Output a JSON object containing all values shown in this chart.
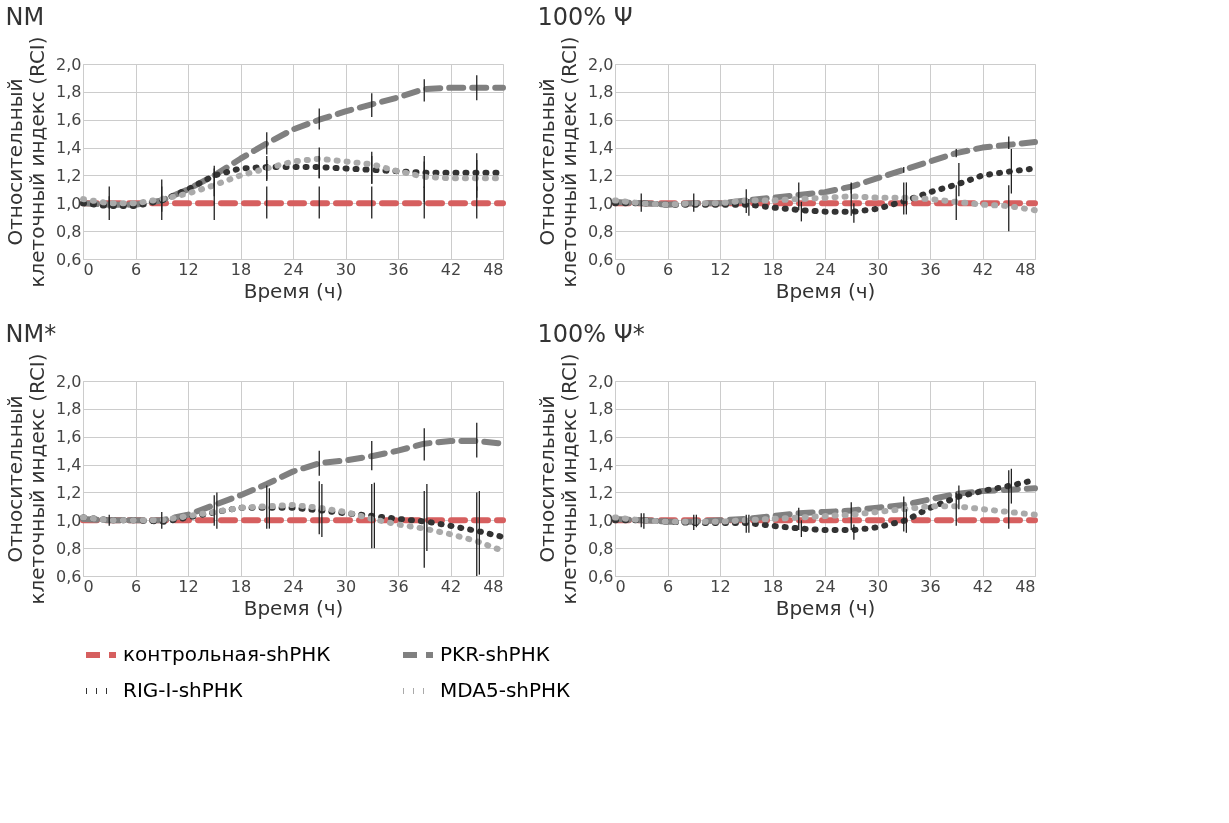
{
  "chart_data": [
    {
      "type": "line",
      "title": "NM",
      "xlabel": "Время (ч)",
      "ylabel": "Относительный\nклеточный индекс (RCI)",
      "x": [
        0,
        3,
        6,
        9,
        12,
        15,
        18,
        21,
        24,
        27,
        30,
        33,
        36,
        39,
        42,
        45,
        48
      ],
      "xlim": [
        0,
        48
      ],
      "xticks": [
        0,
        6,
        12,
        18,
        24,
        30,
        36,
        42,
        48
      ],
      "ylim": [
        0.6,
        2.0
      ],
      "yticks": [
        {
          "value": 0.6,
          "label": "0,6"
        },
        {
          "value": 0.8,
          "label": "0,8"
        },
        {
          "value": 1.0,
          "label": "1,0"
        },
        {
          "value": 1.2,
          "label": "1,2"
        },
        {
          "value": 1.4,
          "label": "1,4"
        },
        {
          "value": 1.6,
          "label": "1,6"
        },
        {
          "value": 1.8,
          "label": "1,8"
        },
        {
          "value": 2.0,
          "label": "2,0"
        }
      ],
      "grid": true,
      "legend": "bottom",
      "marker": "none",
      "series": [
        {
          "name": "контрольная-shРНК",
          "color": "#d65f5f",
          "line_style": "dashed",
          "values": [
            1.0,
            1.0,
            1.0,
            1.0,
            1.0,
            1.0,
            1.0,
            1.0,
            1.0,
            1.0,
            1.0,
            1.0,
            1.0,
            1.0,
            1.0,
            1.0,
            1.0
          ],
          "errors": [
            null,
            [
              0.88,
              1.12
            ],
            null,
            [
              0.88,
              1.12
            ],
            null,
            [
              0.88,
              1.15
            ],
            null,
            [
              0.89,
              1.12
            ],
            null,
            [
              0.89,
              1.12
            ],
            null,
            [
              0.89,
              1.12
            ],
            null,
            [
              0.89,
              1.12
            ],
            null,
            [
              0.89,
              1.12
            ],
            null
          ]
        },
        {
          "name": "PKR-shРНК",
          "color": "#808080",
          "line_style": "dashed",
          "values": [
            1.0,
            0.99,
            0.99,
            1.02,
            1.1,
            1.2,
            1.32,
            1.43,
            1.53,
            1.6,
            1.66,
            1.71,
            1.76,
            1.82,
            1.83,
            1.83,
            1.83
          ],
          "errors": [
            null,
            null,
            null,
            null,
            null,
            null,
            null,
            [
              1.35,
              1.51
            ],
            null,
            [
              1.53,
              1.68
            ],
            null,
            [
              1.62,
              1.79
            ],
            null,
            [
              1.73,
              1.89
            ],
            null,
            [
              1.74,
              1.92
            ],
            null
          ]
        },
        {
          "name": "RIG-I-shРНК",
          "color": "#333333",
          "line_style": "dotted",
          "values": [
            1.0,
            0.98,
            0.98,
            1.02,
            1.1,
            1.2,
            1.25,
            1.26,
            1.26,
            1.26,
            1.25,
            1.24,
            1.23,
            1.22,
            1.22,
            1.22,
            1.22
          ],
          "errors": [
            null,
            [
              0.96,
              1.05
            ],
            null,
            [
              0.94,
              1.17
            ],
            null,
            [
              1.12,
              1.27
            ],
            null,
            [
              1.17,
              1.34
            ],
            null,
            [
              1.18,
              1.34
            ],
            null,
            [
              1.14,
              1.34
            ],
            null,
            [
              1.11,
              1.34
            ],
            null,
            [
              1.09,
              1.36
            ],
            null
          ]
        },
        {
          "name": "MDA5-shРНК",
          "color": "#aaaaaa",
          "line_style": "dotted",
          "values": [
            1.03,
            1.0,
            1.0,
            1.03,
            1.07,
            1.13,
            1.2,
            1.25,
            1.3,
            1.32,
            1.3,
            1.28,
            1.23,
            1.19,
            1.18,
            1.18,
            1.18
          ],
          "errors": [
            null,
            null,
            null,
            null,
            null,
            [
              1.05,
              1.25
            ],
            null,
            [
              1.16,
              1.31
            ],
            null,
            [
              1.18,
              1.4
            ],
            null,
            [
              1.14,
              1.37
            ],
            null,
            [
              1.01,
              1.3
            ],
            null,
            [
              1.04,
              1.31
            ],
            null
          ]
        }
      ]
    },
    {
      "type": "line",
      "title": "100% Ψ",
      "xlabel": "Время (ч)",
      "ylabel": "Относительный\nклеточный индекс (RCI)",
      "x": [
        0,
        3,
        6,
        9,
        12,
        15,
        18,
        21,
        24,
        27,
        30,
        33,
        36,
        39,
        42,
        45,
        48
      ],
      "xlim": [
        0,
        48
      ],
      "xticks": [
        0,
        6,
        12,
        18,
        24,
        30,
        36,
        42,
        48
      ],
      "ylim": [
        0.6,
        2.0
      ],
      "yticks": [
        {
          "value": 0.6,
          "label": "0,6"
        },
        {
          "value": 0.8,
          "label": "0,8"
        },
        {
          "value": 1.0,
          "label": "1,0"
        },
        {
          "value": 1.2,
          "label": "1,2"
        },
        {
          "value": 1.4,
          "label": "1,4"
        },
        {
          "value": 1.6,
          "label": "1,6"
        },
        {
          "value": 1.8,
          "label": "1,8"
        },
        {
          "value": 2.0,
          "label": "2,0"
        }
      ],
      "grid": true,
      "legend": "bottom",
      "marker": "none",
      "series": [
        {
          "name": "контрольная-shРНК",
          "color": "#d65f5f",
          "line_style": "dashed",
          "values": [
            1.0,
            1.0,
            1.0,
            1.0,
            1.0,
            1.0,
            1.0,
            1.0,
            1.0,
            1.0,
            1.0,
            1.0,
            1.0,
            1.0,
            1.0,
            1.0,
            1.0
          ],
          "errors": [
            null,
            [
              0.94,
              1.07
            ],
            null,
            [
              0.94,
              1.07
            ],
            null,
            [
              0.93,
              1.1
            ],
            null,
            [
              0.95,
              1.15
            ],
            null,
            [
              0.91,
              1.14
            ],
            null,
            [
              0.92,
              1.15
            ],
            null,
            [
              0.88,
              1.13
            ],
            null,
            [
              0.8,
              1.13
            ],
            null
          ]
        },
        {
          "name": "PKR-shРНК",
          "color": "#808080",
          "line_style": "dashed",
          "values": [
            1.01,
            1.0,
            0.99,
            1.0,
            1.0,
            1.02,
            1.04,
            1.06,
            1.08,
            1.12,
            1.18,
            1.24,
            1.3,
            1.36,
            1.4,
            1.42,
            1.44
          ],
          "errors": [
            null,
            null,
            null,
            null,
            null,
            null,
            null,
            null,
            null,
            [
              1.07,
              1.15
            ],
            null,
            [
              1.22,
              1.26
            ],
            null,
            [
              1.33,
              1.39
            ],
            null,
            [
              1.39,
              1.48
            ],
            null
          ]
        },
        {
          "name": "RIG-I-shРНК",
          "color": "#333333",
          "line_style": "dotted",
          "x": [
            0,
            3.3,
            6,
            9.3,
            12,
            15.3,
            18,
            21.3,
            24,
            27.3,
            30,
            33.3,
            36,
            39.3,
            42,
            45.3,
            48
          ],
          "values": [
            1.0,
            1.0,
            0.99,
            0.99,
            0.99,
            0.99,
            0.97,
            0.95,
            0.94,
            0.94,
            0.96,
            1.02,
            1.08,
            1.14,
            1.2,
            1.23,
            1.25
          ],
          "errors": [
            null,
            null,
            null,
            null,
            null,
            [
              0.91,
              1.03
            ],
            null,
            [
              0.87,
              1.01
            ],
            null,
            [
              0.86,
              1.0
            ],
            null,
            [
              0.92,
              1.15
            ],
            null,
            [
              1.05,
              1.29
            ],
            null,
            [
              1.07,
              1.39
            ],
            null
          ]
        },
        {
          "name": "MDA5-shРНК",
          "color": "#aaaaaa",
          "line_style": "dotted",
          "values": [
            1.02,
            1.0,
            0.99,
            1.0,
            1.0,
            1.02,
            1.02,
            1.03,
            1.04,
            1.05,
            1.04,
            1.04,
            1.03,
            1.01,
            0.99,
            0.98,
            0.95
          ]
        }
      ]
    },
    {
      "type": "line",
      "title": "NM*",
      "xlabel": "Время (ч)",
      "ylabel": "Относительный\nклеточный индекс (RCI)",
      "x": [
        0,
        3,
        6,
        9,
        12,
        15,
        18,
        21,
        24,
        27,
        30,
        33,
        36,
        39,
        42,
        45,
        48
      ],
      "xlim": [
        0,
        48
      ],
      "xticks": [
        0,
        6,
        12,
        18,
        24,
        30,
        36,
        42,
        48
      ],
      "ylim": [
        0.6,
        2.0
      ],
      "yticks": [
        {
          "value": 0.6,
          "label": "0,6"
        },
        {
          "value": 0.8,
          "label": "0,8"
        },
        {
          "value": 1.0,
          "label": "1,0"
        },
        {
          "value": 1.2,
          "label": "1,2"
        },
        {
          "value": 1.4,
          "label": "1,4"
        },
        {
          "value": 1.6,
          "label": "1,6"
        },
        {
          "value": 1.8,
          "label": "1,8"
        },
        {
          "value": 2.0,
          "label": "2,0"
        }
      ],
      "grid": true,
      "legend": "bottom",
      "marker": "none",
      "series": [
        {
          "name": "контрольная-shРНК",
          "color": "#d65f5f",
          "line_style": "dashed",
          "values": [
            1.0,
            1.0,
            1.0,
            1.0,
            1.0,
            1.0,
            1.0,
            1.0,
            1.0,
            1.0,
            1.0,
            1.0,
            1.0,
            1.0,
            1.0,
            1.0,
            1.0
          ],
          "errors": [
            null,
            [
              0.96,
              1.04
            ],
            null,
            [
              0.94,
              1.06
            ],
            null,
            [
              0.96,
              1.18
            ],
            null,
            [
              0.94,
              1.25
            ],
            null,
            [
              0.9,
              1.28
            ],
            null,
            [
              0.8,
              1.26
            ],
            null,
            [
              0.66,
              1.21
            ],
            null,
            [
              0.6,
              1.2
            ],
            null
          ]
        },
        {
          "name": "PKR-shРНК",
          "color": "#808080",
          "line_style": "dashed",
          "values": [
            1.01,
            1.0,
            1.0,
            1.0,
            1.04,
            1.11,
            1.18,
            1.26,
            1.35,
            1.41,
            1.43,
            1.46,
            1.5,
            1.55,
            1.57,
            1.57,
            1.55
          ],
          "errors": [
            null,
            null,
            null,
            null,
            null,
            null,
            null,
            null,
            null,
            [
              1.32,
              1.5
            ],
            null,
            [
              1.36,
              1.57
            ],
            null,
            [
              1.43,
              1.66
            ],
            null,
            [
              1.45,
              1.7
            ],
            null
          ]
        },
        {
          "name": "RIG-I-shРНК",
          "color": "#333333",
          "line_style": "dotted",
          "x": [
            0,
            3.3,
            6,
            9.3,
            12,
            15.3,
            18,
            21.3,
            24,
            27.3,
            30,
            33.3,
            36,
            39.3,
            42,
            45.3,
            48
          ],
          "values": [
            1.02,
            1.0,
            1.0,
            0.99,
            1.02,
            1.06,
            1.09,
            1.09,
            1.09,
            1.07,
            1.05,
            1.03,
            1.01,
            0.99,
            0.96,
            0.92,
            0.88
          ],
          "errors": [
            null,
            null,
            null,
            null,
            null,
            [
              0.94,
              1.2
            ],
            null,
            [
              0.94,
              1.23
            ],
            null,
            [
              0.88,
              1.26
            ],
            null,
            [
              0.8,
              1.27
            ],
            null,
            [
              0.78,
              1.26
            ],
            null,
            [
              0.61,
              1.21
            ],
            null
          ]
        },
        {
          "name": "MDA5-shРНК",
          "color": "#aaaaaa",
          "line_style": "dotted",
          "values": [
            1.02,
            1.0,
            1.0,
            1.0,
            1.03,
            1.06,
            1.09,
            1.1,
            1.11,
            1.09,
            1.06,
            1.01,
            0.97,
            0.94,
            0.9,
            0.85,
            0.78
          ]
        }
      ]
    },
    {
      "type": "line",
      "title": "100% Ψ*",
      "xlabel": "Время (ч)",
      "ylabel": "Относительный\nклеточный индекс (RCI)",
      "x": [
        0,
        3,
        6,
        9,
        12,
        15,
        18,
        21,
        24,
        27,
        30,
        33,
        36,
        39,
        42,
        45,
        48
      ],
      "xlim": [
        0,
        48
      ],
      "xticks": [
        0,
        6,
        12,
        18,
        24,
        30,
        36,
        42,
        48
      ],
      "ylim": [
        0.6,
        2.0
      ],
      "yticks": [
        {
          "value": 0.6,
          "label": "0,6"
        },
        {
          "value": 0.8,
          "label": "0,8"
        },
        {
          "value": 1.0,
          "label": "1,0"
        },
        {
          "value": 1.2,
          "label": "1,2"
        },
        {
          "value": 1.4,
          "label": "1,4"
        },
        {
          "value": 1.6,
          "label": "1,6"
        },
        {
          "value": 1.8,
          "label": "1,8"
        },
        {
          "value": 2.0,
          "label": "2,0"
        }
      ],
      "grid": true,
      "legend": "bottom",
      "marker": "none",
      "series": [
        {
          "name": "контрольная-shРНК",
          "color": "#d65f5f",
          "line_style": "dashed",
          "values": [
            1.0,
            1.0,
            1.0,
            1.0,
            1.0,
            1.0,
            1.0,
            1.0,
            1.0,
            1.0,
            1.0,
            1.0,
            1.0,
            1.0,
            1.0,
            1.0,
            1.0
          ],
          "errors": [
            null,
            [
              0.95,
              1.05
            ],
            null,
            [
              0.93,
              1.04
            ],
            null,
            [
              0.91,
              1.04
            ],
            null,
            [
              0.93,
              1.09
            ],
            null,
            [
              0.93,
              1.13
            ],
            null,
            [
              0.92,
              1.17
            ],
            null,
            [
              0.96,
              1.2
            ],
            null,
            [
              0.94,
              1.36
            ],
            null
          ]
        },
        {
          "name": "PKR-shРНК",
          "color": "#808080",
          "line_style": "dashed",
          "values": [
            1.01,
            1.0,
            0.99,
            0.99,
            1.0,
            1.01,
            1.03,
            1.05,
            1.06,
            1.07,
            1.09,
            1.11,
            1.15,
            1.19,
            1.21,
            1.22,
            1.23
          ]
        },
        {
          "name": "RIG-I-shРНК",
          "color": "#333333",
          "line_style": "dotted",
          "x": [
            0,
            3.3,
            6,
            9.3,
            12,
            15.3,
            18,
            21.3,
            24,
            27.3,
            30,
            33.3,
            36,
            39.3,
            42,
            45.3,
            48
          ],
          "values": [
            1.0,
            1.0,
            0.99,
            0.98,
            0.98,
            0.98,
            0.96,
            0.94,
            0.93,
            0.93,
            0.95,
            1.0,
            1.09,
            1.17,
            1.21,
            1.25,
            1.29
          ],
          "errors": [
            null,
            [
              0.94,
              1.05
            ],
            null,
            [
              0.95,
              1.04
            ],
            null,
            [
              0.91,
              1.04
            ],
            null,
            [
              0.88,
              1.0
            ],
            null,
            [
              0.86,
              0.97
            ],
            null,
            [
              0.91,
              1.08
            ],
            null,
            [
              1.08,
              1.25
            ],
            null,
            [
              1.12,
              1.37
            ],
            null
          ]
        },
        {
          "name": "MDA5-shРНК",
          "color": "#aaaaaa",
          "line_style": "dotted",
          "values": [
            1.02,
            1.0,
            0.99,
            0.99,
            0.99,
            1.0,
            1.01,
            1.02,
            1.03,
            1.04,
            1.06,
            1.08,
            1.1,
            1.1,
            1.08,
            1.06,
            1.04
          ]
        }
      ]
    }
  ]
}
